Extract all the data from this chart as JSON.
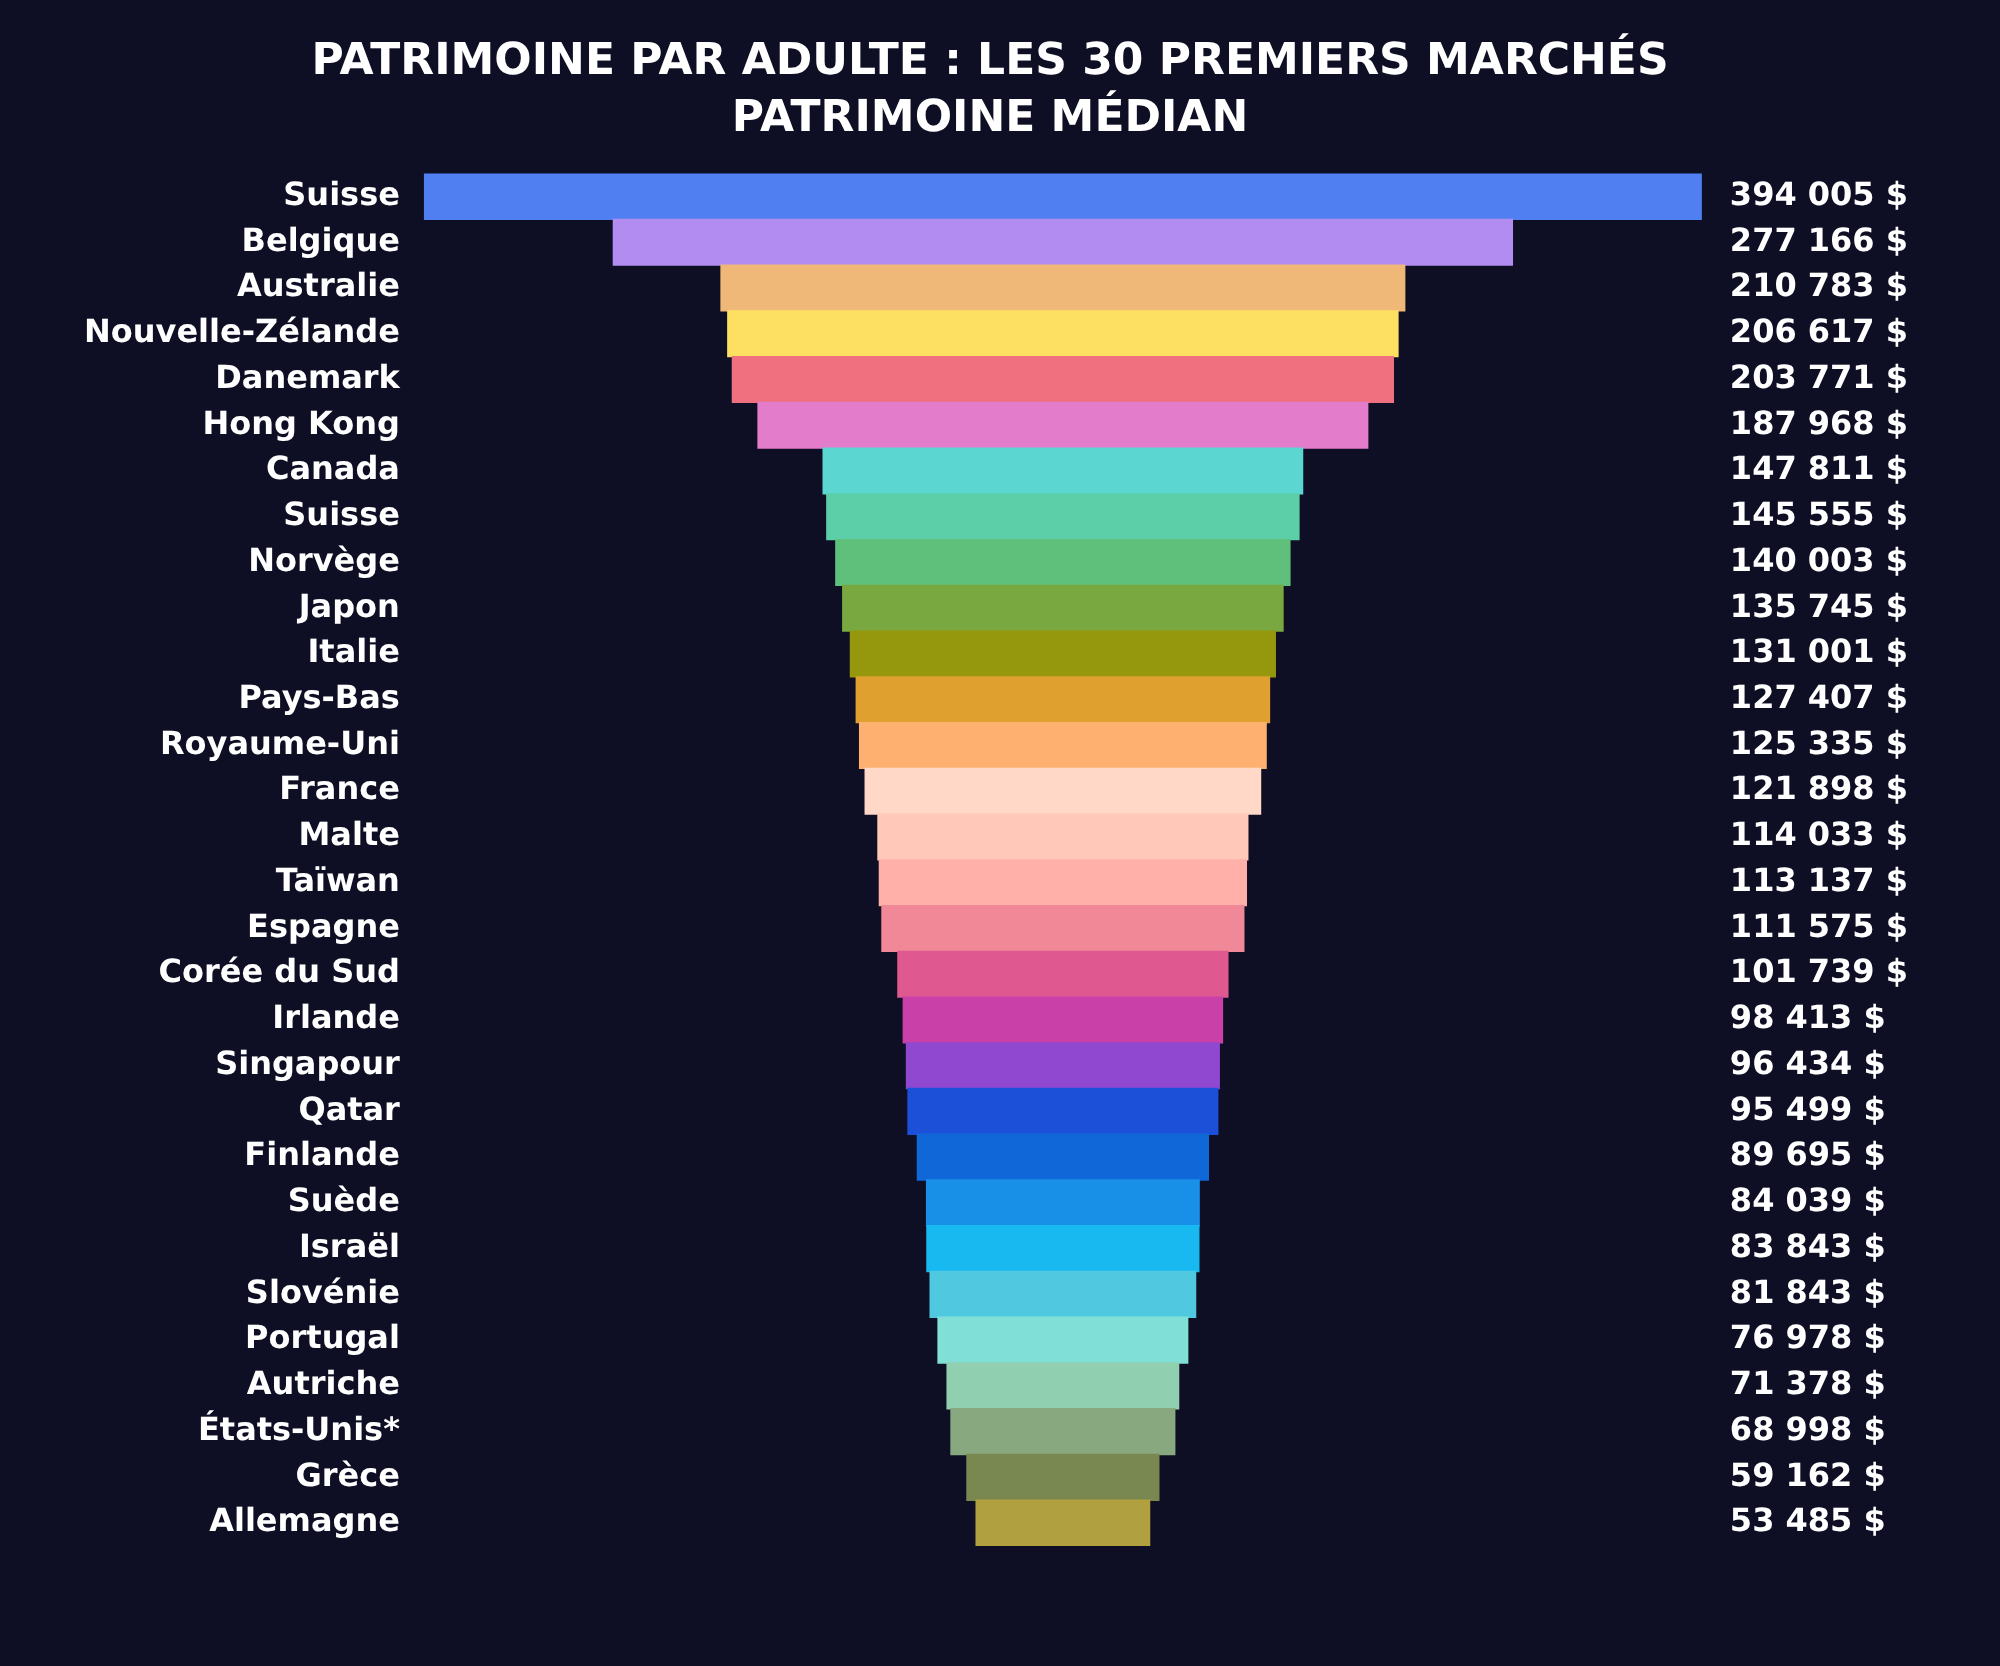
{
  "chart_data": {
    "type": "other",
    "title": "PATRIMOINE PAR ADULTE : LES 30 PREMIERS MARCHÉS",
    "subtitle": "PATRIMOINE MÉDIAN",
    "categories": [
      "Suisse",
      "Belgique",
      "Australie",
      "Nouvelle-Zélande",
      "Danemark",
      "Hong Kong",
      "Canada",
      "Suisse",
      "Norvège",
      "Japon",
      "Italie",
      "Pays-Bas",
      "Royaume-Uni",
      "France",
      "Malte",
      "Taïwan",
      "Espagne",
      "Corée du Sud",
      "Irlande",
      "Singapour",
      "Qatar",
      "Finlande",
      "Suède",
      "Israël",
      "Slovénie",
      "Portugal",
      "Autriche",
      "États-Unis*",
      "Grèce",
      "Allemagne"
    ],
    "values": [
      394005,
      277166,
      210783,
      206617,
      203771,
      187968,
      147811,
      145555,
      140003,
      135745,
      131001,
      127407,
      125335,
      121898,
      114033,
      113137,
      111575,
      101739,
      98413,
      96434,
      95499,
      89695,
      84039,
      83843,
      81843,
      76978,
      71378,
      68998,
      59162,
      53485
    ],
    "value_labels": [
      "394 005 $",
      "277 166 $",
      "210 783 $",
      "206 617 $",
      "203 771 $",
      "187 968 $",
      "147 811 $",
      "145 555 $",
      "140 003 $",
      "135 745 $",
      "131 001 $",
      "127 407 $",
      "125 335 $",
      "121 898 $",
      "114 033 $",
      "113 137 $",
      "111 575 $",
      "101 739 $",
      "98 413 $",
      "96 434 $",
      "95 499 $",
      "89 695 $",
      "84 039 $",
      "83 843 $",
      "81 843 $",
      "76 978 $",
      "71 378 $",
      "68 998 $",
      "59 162 $",
      "53 485 $"
    ],
    "colors": [
      "#4f7ff0",
      "#b28cf0",
      "#f0b878",
      "#fde062",
      "#f07080",
      "#e47ccc",
      "#5cd6d0",
      "#5ccfa8",
      "#5ec07a",
      "#7aa840",
      "#95980c",
      "#e0a030",
      "#fdb070",
      "#ffd8c8",
      "#ffc8b8",
      "#ffb0a8",
      "#f08898",
      "#e05890",
      "#c840a8",
      "#9048d0",
      "#1c50d8",
      "#1068d8",
      "#1890e8",
      "#18b8f0",
      "#50c8e0",
      "#80e0d8",
      "#90d0b0",
      "#88a880",
      "#788850",
      "#b0a040"
    ]
  }
}
